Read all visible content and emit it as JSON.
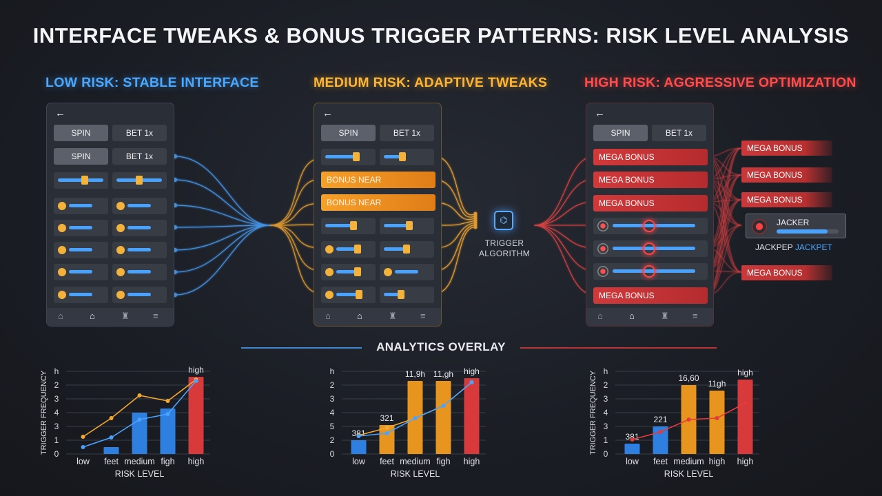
{
  "title": "INTERFACE TWEAKS & BONUS TRIGGER PATTERNS: RISK LEVEL ANALYSIS",
  "columns": {
    "low": {
      "heading": "LOW RISK: STABLE INTERFACE"
    },
    "medium": {
      "heading": "MEDIUM RISK: ADAPTIVE TWEAKS"
    },
    "high": {
      "heading": "HIGH RISK: AGGRESSIVE OPTIMIZATION"
    }
  },
  "phone": {
    "back_icon": "←",
    "spin_label": "SPIN",
    "bet_label": "BET 1x",
    "nav_icons": [
      "home-outline-icon",
      "home-icon",
      "gift-icon",
      "menu-icon"
    ]
  },
  "medium_panel": {
    "bonus_label": "BONUS NEAR"
  },
  "high_panel": {
    "mega_label": "MEGA BONUS"
  },
  "trigger": {
    "icon": "⌬",
    "label_line1": "TRIGGER",
    "label_line2": "ALGORITHM"
  },
  "outputs": {
    "mega_label": "MEGA BONUS",
    "jacker_label": "JACKER",
    "jacker_fill": 0.82,
    "jackpep_part1": "JACKPEP",
    "jackpep_part2": "JACKPET"
  },
  "overlay_title": "ANALYTICS OVERLAY",
  "colors": {
    "blue": "#4aa2ff",
    "orange": "#f6a02a",
    "red": "#d9393b"
  },
  "chart_data": [
    {
      "type": "bar",
      "ylabel": "TRIGGER FREQUENCY",
      "xlabel": "RISK LEVEL",
      "categories": [
        "low",
        "feet",
        "medium",
        "figh",
        "high"
      ],
      "yticks": [
        "0",
        "1",
        "3",
        "4",
        "3",
        "2",
        "h"
      ],
      "bars": [
        0,
        0.5,
        3.0,
        3.3,
        5.6
      ],
      "bar_colors": [
        "#2f7fe0",
        "#2f7fe0",
        "#2f7fe0",
        "#2f7fe0",
        "#d8393b"
      ],
      "bar_labels": [
        "",
        "",
        "",
        "",
        "high"
      ],
      "series": [
        {
          "color": "#f5a830",
          "values": [
            1.25,
            2.6,
            4.25,
            3.85,
            5.4
          ]
        },
        {
          "color": "#4aa2ff",
          "values": [
            0.5,
            1.2,
            2.5,
            2.9,
            5.3
          ]
        }
      ]
    },
    {
      "type": "bar",
      "ylabel": "",
      "xlabel": "RISK LEVEL",
      "categories": [
        "low",
        "feet",
        "medium",
        "figh",
        "high"
      ],
      "yticks": [
        "0",
        "2",
        "5",
        "4",
        "3",
        "2",
        "h"
      ],
      "bars": [
        1.0,
        2.1,
        5.3,
        5.3,
        5.5
      ],
      "bar_colors": [
        "#2f7fe0",
        "#e8951f",
        "#e8951f",
        "#e8951f",
        "#d8393b"
      ],
      "bar_labels": [
        "381",
        "321",
        "11,9h",
        "11,gh",
        "high"
      ],
      "series": [
        {
          "color": "#f5a830",
          "values": [
            1.35,
            1.9,
            2.6,
            3.5,
            5.2
          ]
        },
        {
          "color": "#4aa2ff",
          "values": [
            1.3,
            1.5,
            2.6,
            3.5,
            5.2
          ]
        }
      ]
    },
    {
      "type": "bar",
      "ylabel": "TRIGGER FREQUENCY",
      "xlabel": "RISK LEVEL",
      "categories": [
        "low",
        "feet",
        "medium",
        "high",
        "high"
      ],
      "yticks": [
        "0",
        "1",
        "3",
        "4",
        "3",
        "2",
        "h"
      ],
      "bars": [
        0.75,
        2.0,
        5.0,
        4.6,
        5.4
      ],
      "bar_colors": [
        "#2f7fe0",
        "#2f7fe0",
        "#e8951f",
        "#e8951f",
        "#d8393b"
      ],
      "bar_labels": [
        "381",
        "221",
        "16,60",
        "11gh",
        "high"
      ],
      "series": [
        {
          "color": "#e23b3b",
          "values": [
            1.05,
            1.6,
            2.5,
            2.6,
            3.7
          ]
        }
      ]
    }
  ]
}
